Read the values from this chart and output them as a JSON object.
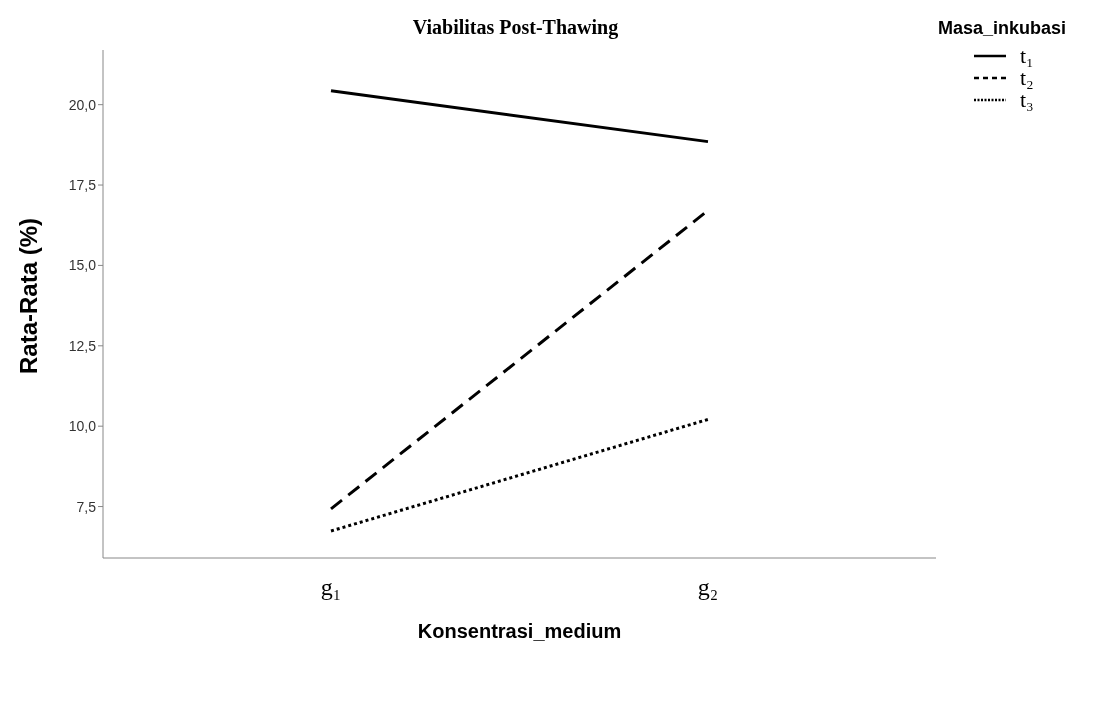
{
  "chart_data": {
    "type": "line",
    "title": "Viabilitas Post-Thawing",
    "xlabel": "Konsentrasi_medium",
    "ylabel": "Rata-Rata (%)",
    "legend_title": "Masa_inkubasi",
    "categories": [
      "g₁",
      "g₂"
    ],
    "series": [
      {
        "name": "t₁",
        "color": "#000000",
        "values": [
          20.43,
          18.85
        ],
        "line_style": "solid"
      },
      {
        "name": "t₂",
        "color": "#000000",
        "values": [
          7.43,
          16.71
        ],
        "line_style": "dashed"
      },
      {
        "name": "t₃",
        "color": "#000000",
        "values": [
          6.74,
          10.21
        ],
        "line_style": "dotted"
      }
    ],
    "ylim": [
      5.9,
      21.7
    ],
    "yticks": [
      {
        "value": 7.5,
        "label": "7,5"
      },
      {
        "value": 10,
        "label": "10,0"
      },
      {
        "value": 12.5,
        "label": "12,5"
      },
      {
        "value": 15,
        "label": "15,0"
      },
      {
        "value": 17.5,
        "label": "17,5"
      },
      {
        "value": 20,
        "label": "20,0"
      }
    ],
    "grid": false,
    "legend": "top right",
    "marker": "none"
  }
}
